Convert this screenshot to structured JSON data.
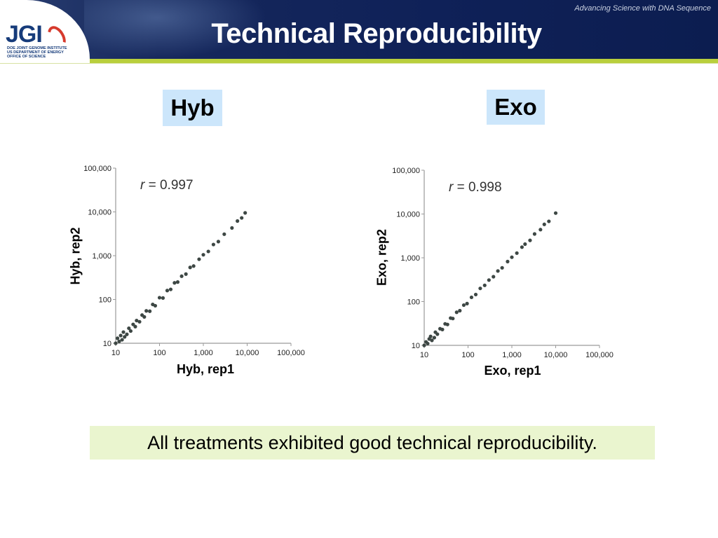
{
  "header": {
    "title": "Technical Reproducibility",
    "slogan": "Advancing Science with DNA Sequence",
    "logo": {
      "mark": "JGI",
      "subtitle": "DOE JOINT GENOME INSTITUTE",
      "dept": "US DEPARTMENT OF ENERGY",
      "office": "OFFICE OF SCIENCE"
    }
  },
  "panels": [
    {
      "label": "Hyb"
    },
    {
      "label": "Exo"
    }
  ],
  "chart_data": [
    {
      "type": "scatter",
      "name": "Hyb",
      "xlabel": "Hyb, rep1",
      "ylabel": "Hyb, rep2",
      "x_scale": "log",
      "y_scale": "log",
      "xlim": [
        10,
        100000
      ],
      "ylim": [
        10,
        100000
      ],
      "xticks": [
        "10",
        "100",
        "1,000",
        "10,000",
        "100,000"
      ],
      "yticks": [
        "10",
        "100",
        "1,000",
        "10,000",
        "100,000"
      ],
      "annotation": {
        "var": "r",
        "text": " = 0.997"
      },
      "r": 0.997,
      "point_color": "#3d4744",
      "points": [
        [
          10,
          10
        ],
        [
          12,
          11
        ],
        [
          11,
          13
        ],
        [
          14,
          12
        ],
        [
          13,
          15
        ],
        [
          16,
          14
        ],
        [
          15,
          18
        ],
        [
          18,
          16
        ],
        [
          20,
          22
        ],
        [
          22,
          19
        ],
        [
          25,
          27
        ],
        [
          28,
          24
        ],
        [
          30,
          33
        ],
        [
          35,
          31
        ],
        [
          40,
          44
        ],
        [
          45,
          40
        ],
        [
          50,
          55
        ],
        [
          60,
          54
        ],
        [
          70,
          77
        ],
        [
          80,
          72
        ],
        [
          100,
          110
        ],
        [
          120,
          108
        ],
        [
          150,
          160
        ],
        [
          180,
          170
        ],
        [
          220,
          240
        ],
        [
          260,
          250
        ],
        [
          320,
          340
        ],
        [
          400,
          380
        ],
        [
          500,
          540
        ],
        [
          600,
          580
        ],
        [
          800,
          830
        ],
        [
          1000,
          1050
        ],
        [
          1300,
          1250
        ],
        [
          1700,
          1800
        ],
        [
          2200,
          2100
        ],
        [
          3000,
          3100
        ],
        [
          4500,
          4300
        ],
        [
          6000,
          6200
        ],
        [
          7500,
          7300
        ],
        [
          9000,
          9500
        ]
      ]
    },
    {
      "type": "scatter",
      "name": "Exo",
      "xlabel": "Exo, rep1",
      "ylabel": "Exo, rep2",
      "x_scale": "log",
      "y_scale": "log",
      "xlim": [
        10,
        100000
      ],
      "ylim": [
        10,
        100000
      ],
      "xticks": [
        "10",
        "100",
        "1,000",
        "10,000",
        "100,000"
      ],
      "yticks": [
        "10",
        "100",
        "1,000",
        "10,000",
        "100,000"
      ],
      "annotation": {
        "var": "r",
        "text": " = 0.998"
      },
      "r": 0.998,
      "point_color": "#3d4744",
      "points": [
        [
          10,
          10
        ],
        [
          11,
          12
        ],
        [
          12,
          11
        ],
        [
          13,
          14
        ],
        [
          15,
          13
        ],
        [
          14,
          16
        ],
        [
          17,
          15
        ],
        [
          18,
          20
        ],
        [
          20,
          18
        ],
        [
          23,
          24
        ],
        [
          26,
          23
        ],
        [
          30,
          31
        ],
        [
          34,
          30
        ],
        [
          40,
          42
        ],
        [
          45,
          41
        ],
        [
          55,
          57
        ],
        [
          65,
          62
        ],
        [
          80,
          83
        ],
        [
          95,
          90
        ],
        [
          120,
          125
        ],
        [
          150,
          145
        ],
        [
          190,
          200
        ],
        [
          240,
          235
        ],
        [
          300,
          310
        ],
        [
          380,
          370
        ],
        [
          480,
          500
        ],
        [
          600,
          590
        ],
        [
          800,
          820
        ],
        [
          1000,
          1030
        ],
        [
          1300,
          1280
        ],
        [
          1700,
          1750
        ],
        [
          2000,
          2050
        ],
        [
          2600,
          2500
        ],
        [
          3300,
          3500
        ],
        [
          4500,
          4400
        ],
        [
          5500,
          5800
        ],
        [
          7000,
          6800
        ],
        [
          10000,
          10500
        ]
      ]
    }
  ],
  "conclusion": "All treatments exhibited good technical reproducibility."
}
